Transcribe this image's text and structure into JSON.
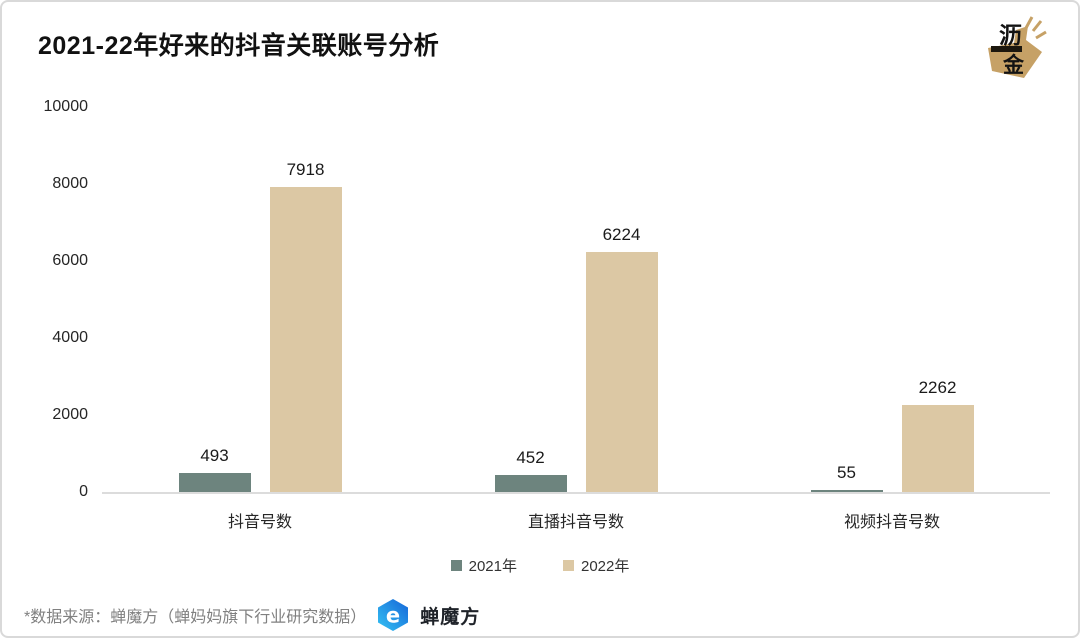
{
  "title": "2021-22年好来的抖音关联账号分析",
  "badge": {
    "char1": "沥",
    "char2": "金",
    "gold_color": "#c6a166"
  },
  "chart_data": {
    "type": "bar",
    "title": "2021-22年好来的抖音关联账号分析",
    "categories": [
      "抖音号数",
      "直播抖音号数",
      "视频抖音号数"
    ],
    "series": [
      {
        "name": "2021年",
        "color": "#6d847e",
        "values": [
          493,
          452,
          55
        ]
      },
      {
        "name": "2022年",
        "color": "#dcc8a4",
        "values": [
          7918,
          6224,
          2262
        ]
      }
    ],
    "xlabel": "",
    "ylabel": "",
    "ylim": [
      0,
      10000
    ],
    "yticks": [
      0,
      2000,
      4000,
      6000,
      8000,
      10000
    ],
    "grid": false,
    "legend_position": "bottom",
    "value_labels": true
  },
  "footer": {
    "source_text": "*数据来源：蝉魔方（蝉妈妈旗下行业研究数据）",
    "logo_text": "蝉魔方"
  },
  "colors": {
    "series_2021": "#6d847e",
    "series_2022": "#dcc8a4",
    "axis_line": "#dcdcdc",
    "source_text": "#808080",
    "logo_blue_dark": "#1565d8",
    "logo_blue_light": "#35c3f3"
  }
}
